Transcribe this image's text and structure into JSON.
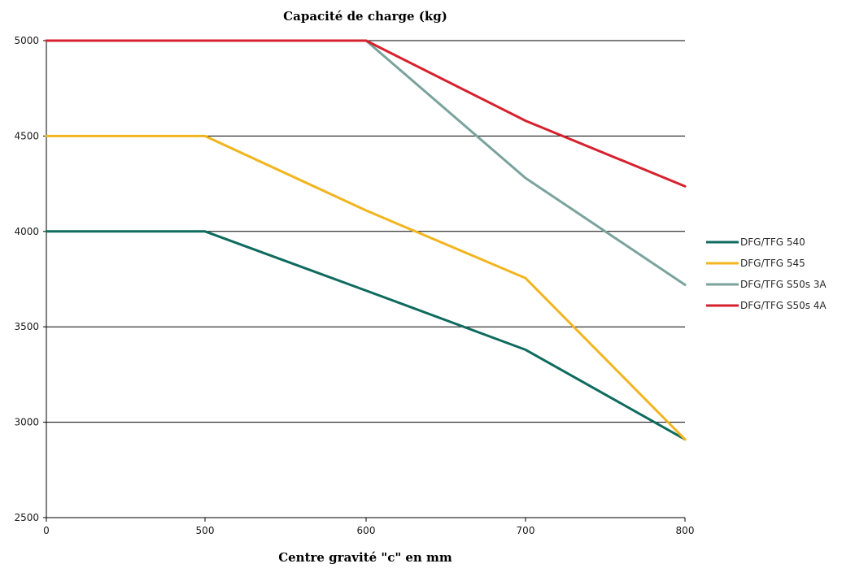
{
  "chart_data": {
    "type": "line",
    "title": "Capacité de charge (kg)",
    "xlabel": "Centre gravité \"c\" en mm",
    "ylabel": "",
    "x": [
      0,
      500,
      600,
      700,
      800
    ],
    "x_tick_labels": [
      "0",
      "500",
      "600",
      "700",
      "800"
    ],
    "ylim": [
      2500,
      5000
    ],
    "y_ticks": [
      2500,
      3000,
      3500,
      4000,
      4500,
      5000
    ],
    "y_tick_labels": [
      "2500",
      "3000",
      "3500",
      "4000",
      "4500",
      "5000"
    ],
    "grid": "horizontal",
    "legend_position": "right",
    "series": [
      {
        "name": "DFG/TFG 540",
        "color": "#0f6b5e",
        "values": [
          4000,
          4000,
          3690,
          3380,
          2910
        ]
      },
      {
        "name": "DFG/TFG 545",
        "color": "#f2b51f",
        "values": [
          4500,
          4500,
          4110,
          3755,
          2910
        ]
      },
      {
        "name": "DFG/TFG S50s 3A",
        "color": "#7aa39c",
        "values": [
          5000,
          5000,
          5000,
          4280,
          3720
        ]
      },
      {
        "name": "DFG/TFG S50s 4A",
        "color": "#d6212e",
        "values": [
          5000,
          5000,
          5000,
          4580,
          4237
        ]
      }
    ]
  }
}
